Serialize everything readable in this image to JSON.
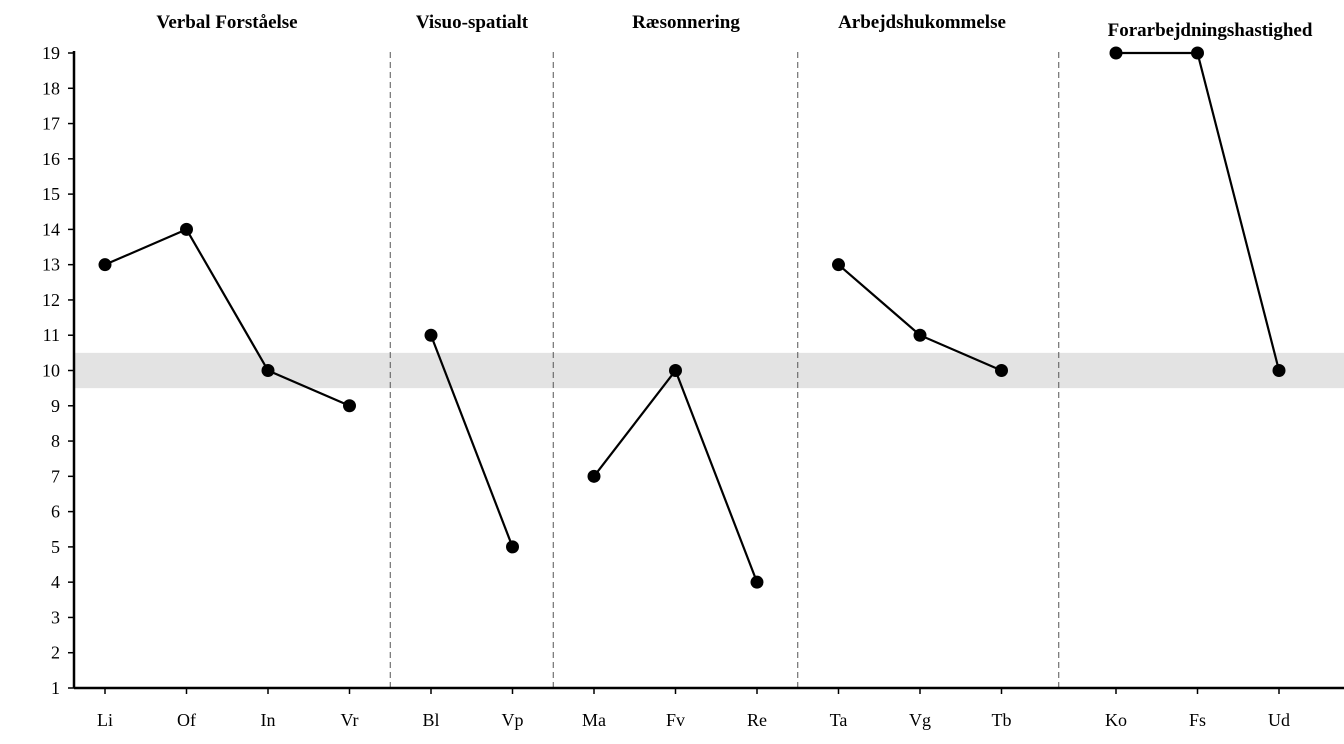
{
  "chart_data": {
    "type": "line",
    "ylim": [
      1,
      19
    ],
    "yticks": [
      1,
      2,
      3,
      4,
      5,
      6,
      7,
      8,
      9,
      10,
      11,
      12,
      13,
      14,
      15,
      16,
      17,
      18,
      19
    ],
    "band": [
      9.5,
      10.5
    ],
    "groups": [
      {
        "title": "Verbal Forståelse",
        "categories": [
          "Li",
          "Of",
          "In",
          "Vr"
        ],
        "values": [
          13,
          14,
          10,
          9
        ]
      },
      {
        "title": "Visuo-spatialt",
        "categories": [
          "Bl",
          "Vp"
        ],
        "values": [
          11,
          5
        ]
      },
      {
        "title": "Ræsonnering",
        "categories": [
          "Ma",
          "Fv",
          "Re"
        ],
        "values": [
          7,
          10,
          4
        ]
      },
      {
        "title": "Arbejdshukommelse",
        "categories": [
          "Ta",
          "Vg",
          "Tb"
        ],
        "values": [
          13,
          11,
          10
        ]
      },
      {
        "title": "Forarbejdningshastighed",
        "categories": [
          "Ko",
          "Fs",
          "Ud"
        ],
        "values": [
          19,
          19,
          10
        ]
      }
    ],
    "grid": false,
    "legend": "none",
    "colors": {
      "line": "#000000",
      "band": "#e3e3e3",
      "divider": "#555555"
    }
  }
}
